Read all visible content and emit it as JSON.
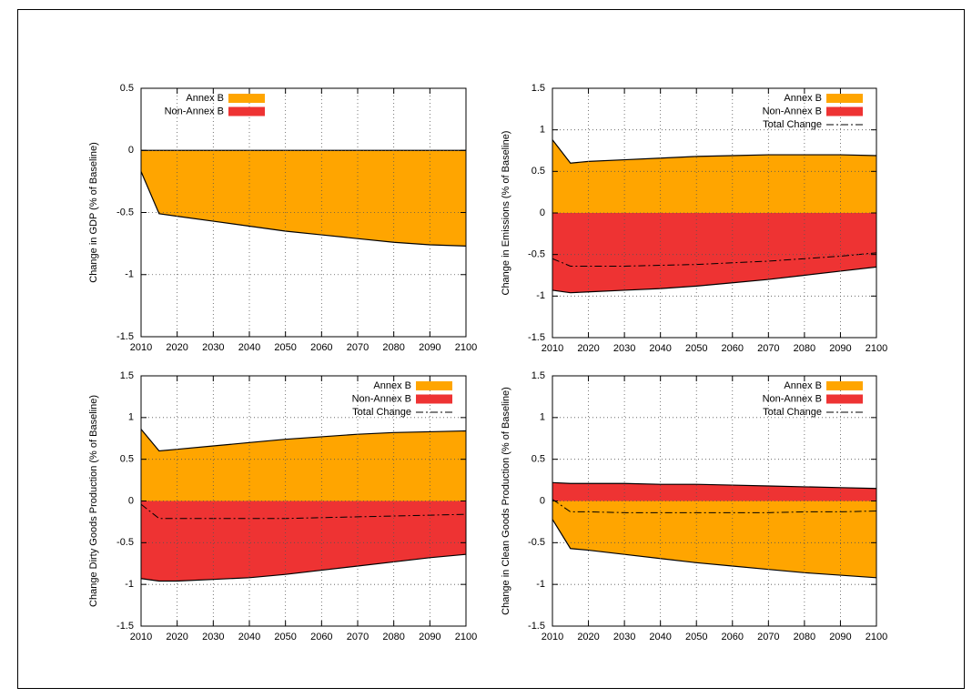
{
  "chart_data": [
    {
      "type": "area",
      "ylabel": "Change in GDP (% of Baseline)",
      "legend": "upper left",
      "grid": true,
      "x": [
        2010,
        2015,
        2020,
        2030,
        2040,
        2050,
        2060,
        2070,
        2080,
        2090,
        2100
      ],
      "xlim": [
        2010,
        2100
      ],
      "xticks": [
        2010,
        2020,
        2030,
        2040,
        2050,
        2060,
        2070,
        2080,
        2090,
        2100
      ],
      "ylim": [
        -1.5,
        0.5
      ],
      "yticks": [
        -1.5,
        -1,
        -0.5,
        0,
        0.5
      ],
      "series": [
        {
          "name": "Annex B",
          "color": "#ffa500",
          "style": "area",
          "values": [
            -0.17,
            -0.51,
            -0.53,
            -0.57,
            -0.61,
            -0.65,
            -0.68,
            -0.71,
            -0.74,
            -0.76,
            -0.77
          ]
        },
        {
          "name": "Non-Annex B",
          "color": "#ee3333",
          "style": "area",
          "values": [
            0,
            0,
            0,
            0,
            0,
            0,
            0,
            0,
            0,
            0,
            0
          ]
        }
      ]
    },
    {
      "type": "area",
      "ylabel": "Change in Emissions (% of Baseline)",
      "legend": "upper right",
      "grid": true,
      "x": [
        2010,
        2015,
        2020,
        2030,
        2040,
        2050,
        2060,
        2070,
        2080,
        2090,
        2100
      ],
      "xlim": [
        2010,
        2100
      ],
      "xticks": [
        2010,
        2020,
        2030,
        2040,
        2050,
        2060,
        2070,
        2080,
        2090,
        2100
      ],
      "ylim": [
        -1.5,
        1.5
      ],
      "yticks": [
        -1.5,
        -1,
        -0.5,
        0,
        0.5,
        1,
        1.5
      ],
      "series": [
        {
          "name": "Annex B",
          "color": "#ffa500",
          "style": "area",
          "values": [
            0.88,
            0.6,
            0.62,
            0.64,
            0.66,
            0.68,
            0.69,
            0.7,
            0.7,
            0.7,
            0.69
          ]
        },
        {
          "name": "Non-Annex B",
          "color": "#ee3333",
          "style": "area",
          "values": [
            -0.93,
            -0.96,
            -0.95,
            -0.93,
            -0.91,
            -0.88,
            -0.84,
            -0.8,
            -0.75,
            -0.7,
            -0.65
          ]
        },
        {
          "name": "Total Change",
          "color": "#000000",
          "style": "dashdot",
          "values": [
            -0.55,
            -0.64,
            -0.64,
            -0.64,
            -0.63,
            -0.62,
            -0.6,
            -0.58,
            -0.55,
            -0.52,
            -0.48
          ]
        }
      ]
    },
    {
      "type": "area",
      "ylabel": "Change Dirty Goods Production (% of Baseline)",
      "legend": "upper right",
      "grid": true,
      "x": [
        2010,
        2015,
        2020,
        2030,
        2040,
        2050,
        2060,
        2070,
        2080,
        2090,
        2100
      ],
      "xlim": [
        2010,
        2100
      ],
      "xticks": [
        2010,
        2020,
        2030,
        2040,
        2050,
        2060,
        2070,
        2080,
        2090,
        2100
      ],
      "ylim": [
        -1.5,
        1.5
      ],
      "yticks": [
        -1.5,
        -1,
        -0.5,
        0,
        0.5,
        1,
        1.5
      ],
      "series": [
        {
          "name": "Annex B",
          "color": "#ffa500",
          "style": "area",
          "values": [
            0.86,
            0.6,
            0.62,
            0.66,
            0.7,
            0.74,
            0.77,
            0.8,
            0.82,
            0.83,
            0.84
          ]
        },
        {
          "name": "Non-Annex B",
          "color": "#ee3333",
          "style": "area",
          "values": [
            -0.93,
            -0.96,
            -0.96,
            -0.94,
            -0.92,
            -0.88,
            -0.83,
            -0.78,
            -0.73,
            -0.68,
            -0.64
          ]
        },
        {
          "name": "Total Change",
          "color": "#000000",
          "style": "dashdot",
          "values": [
            -0.04,
            -0.21,
            -0.21,
            -0.21,
            -0.21,
            -0.21,
            -0.2,
            -0.19,
            -0.18,
            -0.17,
            -0.16
          ]
        }
      ]
    },
    {
      "type": "area",
      "ylabel": "Change in Clean Goods Production (% of Baseline)",
      "legend": "upper right",
      "grid": true,
      "x": [
        2010,
        2015,
        2020,
        2030,
        2040,
        2050,
        2060,
        2070,
        2080,
        2090,
        2100
      ],
      "xlim": [
        2010,
        2100
      ],
      "xticks": [
        2010,
        2020,
        2030,
        2040,
        2050,
        2060,
        2070,
        2080,
        2090,
        2100
      ],
      "ylim": [
        -1.5,
        1.5
      ],
      "yticks": [
        -1.5,
        -1,
        -0.5,
        0,
        0.5,
        1,
        1.5
      ],
      "series": [
        {
          "name": "Annex B",
          "color": "#ffa500",
          "style": "area",
          "values": [
            -0.22,
            -0.57,
            -0.59,
            -0.64,
            -0.69,
            -0.74,
            -0.78,
            -0.82,
            -0.86,
            -0.89,
            -0.92
          ]
        },
        {
          "name": "Non-Annex B",
          "color": "#ee3333",
          "style": "area",
          "values": [
            0.22,
            0.21,
            0.21,
            0.21,
            0.2,
            0.2,
            0.19,
            0.18,
            0.17,
            0.16,
            0.15
          ]
        },
        {
          "name": "Total Change",
          "color": "#000000",
          "style": "dashdot",
          "values": [
            0.02,
            -0.13,
            -0.13,
            -0.14,
            -0.14,
            -0.14,
            -0.14,
            -0.14,
            -0.13,
            -0.13,
            -0.12
          ]
        }
      ]
    }
  ]
}
